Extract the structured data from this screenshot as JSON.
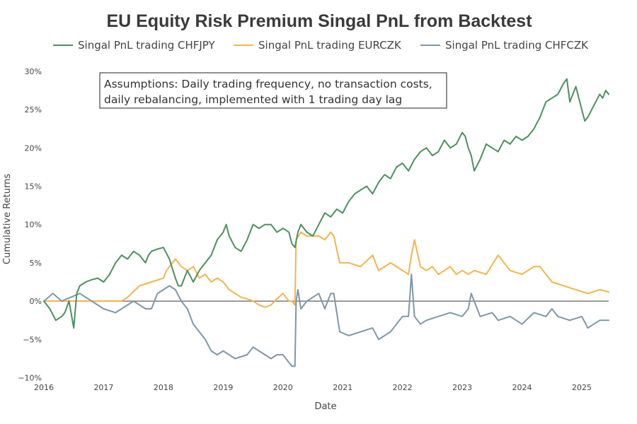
{
  "chart_data": {
    "type": "line",
    "title": "EU Equity Risk Premium Singal PnL from Backtest",
    "xlabel": "Date",
    "ylabel": "Cumulative Returns",
    "xlim": [
      2016.0,
      2025.45
    ],
    "ylim": [
      -0.105,
      0.31
    ],
    "x_ticks": [
      2016,
      2017,
      2018,
      2019,
      2020,
      2021,
      2022,
      2023,
      2024,
      2025
    ],
    "x_tick_labels": [
      "2016",
      "2017",
      "2018",
      "2019",
      "2020",
      "2021",
      "2022",
      "2023",
      "2024",
      "2025"
    ],
    "y_ticks": [
      -0.1,
      -0.05,
      0,
      0.05,
      0.1,
      0.15,
      0.2,
      0.25,
      0.3
    ],
    "y_tick_labels": [
      "−10%",
      "−5%",
      "0%",
      "5%",
      "10%",
      "15%",
      "20%",
      "25%",
      "30%"
    ],
    "legend_position": "top",
    "annotation": {
      "lines": [
        "Assumptions: Daily trading frequency, no transaction costs,",
        "daily rebalancing, implemented with 1 trading day lag"
      ]
    },
    "series": [
      {
        "name": "Singal PnL trading CHFJPY",
        "color": "#4a9160",
        "x": [
          2016.0,
          2016.1,
          2016.2,
          2016.3,
          2016.35,
          2016.42,
          2016.5,
          2016.55,
          2016.6,
          2016.7,
          2016.8,
          2016.9,
          2017.0,
          2017.1,
          2017.2,
          2017.3,
          2017.4,
          2017.5,
          2017.6,
          2017.7,
          2017.75,
          2017.8,
          2017.9,
          2018.0,
          2018.1,
          2018.2,
          2018.25,
          2018.3,
          2018.4,
          2018.5,
          2018.6,
          2018.7,
          2018.8,
          2018.9,
          2019.0,
          2019.05,
          2019.1,
          2019.2,
          2019.3,
          2019.4,
          2019.5,
          2019.6,
          2019.7,
          2019.8,
          2019.9,
          2020.0,
          2020.1,
          2020.15,
          2020.2,
          2020.25,
          2020.3,
          2020.4,
          2020.5,
          2020.6,
          2020.7,
          2020.8,
          2020.9,
          2021.0,
          2021.1,
          2021.2,
          2021.3,
          2021.4,
          2021.5,
          2021.6,
          2021.7,
          2021.8,
          2021.9,
          2022.0,
          2022.1,
          2022.2,
          2022.3,
          2022.4,
          2022.5,
          2022.6,
          2022.7,
          2022.8,
          2022.9,
          2023.0,
          2023.05,
          2023.1,
          2023.15,
          2023.2,
          2023.3,
          2023.4,
          2023.5,
          2023.6,
          2023.7,
          2023.8,
          2023.9,
          2024.0,
          2024.1,
          2024.2,
          2024.3,
          2024.4,
          2024.5,
          2024.6,
          2024.7,
          2024.75,
          2024.8,
          2024.9,
          2025.0,
          2025.05,
          2025.1,
          2025.2,
          2025.3,
          2025.35,
          2025.4,
          2025.45
        ],
        "y": [
          0.0,
          -0.01,
          -0.025,
          -0.02,
          -0.015,
          0.0,
          -0.035,
          0.01,
          0.02,
          0.025,
          0.028,
          0.03,
          0.025,
          0.035,
          0.05,
          0.06,
          0.055,
          0.065,
          0.06,
          0.05,
          0.06,
          0.065,
          0.068,
          0.07,
          0.055,
          0.03,
          0.02,
          0.02,
          0.04,
          0.025,
          0.04,
          0.05,
          0.06,
          0.08,
          0.09,
          0.1,
          0.085,
          0.07,
          0.065,
          0.08,
          0.1,
          0.095,
          0.1,
          0.1,
          0.09,
          0.095,
          0.09,
          0.075,
          0.07,
          0.09,
          0.1,
          0.09,
          0.085,
          0.1,
          0.115,
          0.11,
          0.12,
          0.115,
          0.13,
          0.14,
          0.145,
          0.15,
          0.14,
          0.155,
          0.165,
          0.16,
          0.175,
          0.18,
          0.17,
          0.185,
          0.195,
          0.2,
          0.19,
          0.195,
          0.21,
          0.2,
          0.205,
          0.22,
          0.215,
          0.2,
          0.19,
          0.17,
          0.185,
          0.205,
          0.2,
          0.195,
          0.21,
          0.205,
          0.215,
          0.21,
          0.215,
          0.225,
          0.24,
          0.26,
          0.265,
          0.27,
          0.285,
          0.29,
          0.26,
          0.28,
          0.25,
          0.235,
          0.24,
          0.255,
          0.27,
          0.265,
          0.275,
          0.27
        ]
      },
      {
        "name": "Singal PnL trading EURCZK",
        "color": "#f2b54e",
        "x": [
          2016.0,
          2016.3,
          2016.6,
          2016.9,
          2017.1,
          2017.3,
          2017.4,
          2017.6,
          2017.8,
          2018.0,
          2018.05,
          2018.1,
          2018.15,
          2018.2,
          2018.3,
          2018.4,
          2018.5,
          2018.6,
          2018.7,
          2018.8,
          2018.9,
          2019.0,
          2019.1,
          2019.2,
          2019.3,
          2019.4,
          2019.5,
          2019.6,
          2019.7,
          2019.8,
          2019.9,
          2020.0,
          2020.1,
          2020.15,
          2020.2,
          2020.22,
          2020.3,
          2020.4,
          2020.5,
          2020.6,
          2020.7,
          2020.8,
          2020.85,
          2020.95,
          2021.1,
          2021.3,
          2021.5,
          2021.6,
          2021.8,
          2022.0,
          2022.1,
          2022.15,
          2022.2,
          2022.3,
          2022.4,
          2022.5,
          2022.6,
          2022.7,
          2022.8,
          2022.9,
          2023.0,
          2023.1,
          2023.2,
          2023.4,
          2023.6,
          2023.8,
          2024.0,
          2024.2,
          2024.3,
          2024.5,
          2024.7,
          2024.9,
          2025.1,
          2025.3,
          2025.45
        ],
        "y": [
          0.0,
          0.0,
          0.0,
          0.0,
          0.0,
          0.0,
          0.005,
          0.02,
          0.025,
          0.03,
          0.04,
          0.045,
          0.05,
          0.055,
          0.045,
          0.04,
          0.045,
          0.03,
          0.035,
          0.025,
          0.03,
          0.025,
          0.015,
          0.01,
          0.005,
          0.003,
          0.0,
          -0.005,
          -0.008,
          -0.005,
          0.003,
          0.01,
          0.0,
          0.0,
          -0.005,
          0.08,
          0.09,
          0.085,
          0.085,
          0.085,
          0.08,
          0.09,
          0.085,
          0.05,
          0.05,
          0.045,
          0.06,
          0.04,
          0.05,
          0.04,
          0.035,
          0.06,
          0.08,
          0.045,
          0.04,
          0.045,
          0.035,
          0.04,
          0.045,
          0.035,
          0.04,
          0.035,
          0.04,
          0.035,
          0.06,
          0.04,
          0.035,
          0.045,
          0.045,
          0.025,
          0.02,
          0.015,
          0.01,
          0.015,
          0.012
        ]
      },
      {
        "name": "Singal PnL trading CHFCZK",
        "color": "#7f97a8",
        "x": [
          2016.0,
          2016.15,
          2016.3,
          2016.45,
          2016.6,
          2016.8,
          2017.0,
          2017.2,
          2017.3,
          2017.5,
          2017.7,
          2017.8,
          2017.9,
          2018.0,
          2018.1,
          2018.2,
          2018.3,
          2018.4,
          2018.5,
          2018.6,
          2018.7,
          2018.8,
          2018.9,
          2019.0,
          2019.2,
          2019.4,
          2019.5,
          2019.6,
          2019.7,
          2019.8,
          2019.9,
          2020.0,
          2020.1,
          2020.15,
          2020.2,
          2020.22,
          2020.25,
          2020.3,
          2020.4,
          2020.5,
          2020.6,
          2020.7,
          2020.8,
          2020.85,
          2020.95,
          2021.1,
          2021.3,
          2021.5,
          2021.6,
          2021.8,
          2022.0,
          2022.1,
          2022.15,
          2022.2,
          2022.3,
          2022.4,
          2022.6,
          2022.8,
          2023.0,
          2023.1,
          2023.15,
          2023.3,
          2023.5,
          2023.6,
          2023.8,
          2024.0,
          2024.2,
          2024.4,
          2024.5,
          2024.6,
          2024.8,
          2025.0,
          2025.1,
          2025.2,
          2025.3,
          2025.45
        ],
        "y": [
          0.0,
          0.01,
          0.0,
          0.005,
          0.01,
          0.0,
          -0.01,
          -0.015,
          -0.01,
          0.0,
          -0.01,
          -0.01,
          0.01,
          0.015,
          0.02,
          0.015,
          0.0,
          -0.01,
          -0.03,
          -0.04,
          -0.05,
          -0.065,
          -0.07,
          -0.065,
          -0.075,
          -0.07,
          -0.06,
          -0.065,
          -0.07,
          -0.075,
          -0.07,
          -0.07,
          -0.08,
          -0.085,
          -0.085,
          0.0,
          0.015,
          -0.01,
          0.0,
          0.005,
          0.01,
          -0.01,
          0.01,
          0.01,
          -0.04,
          -0.045,
          -0.04,
          -0.035,
          -0.05,
          -0.04,
          -0.02,
          -0.02,
          0.035,
          -0.02,
          -0.03,
          -0.025,
          -0.02,
          -0.015,
          -0.02,
          -0.01,
          0.01,
          -0.02,
          -0.015,
          -0.025,
          -0.02,
          -0.03,
          -0.015,
          -0.02,
          -0.01,
          -0.02,
          -0.025,
          -0.02,
          -0.035,
          -0.03,
          -0.025,
          -0.025
        ]
      }
    ]
  }
}
